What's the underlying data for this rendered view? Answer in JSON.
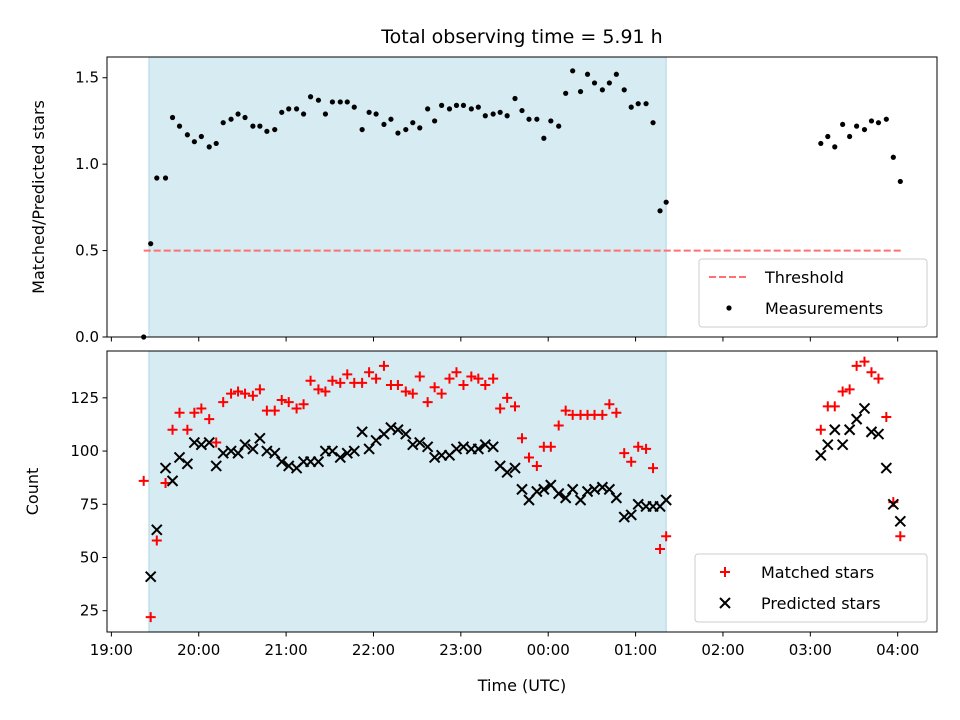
{
  "chart_data": [
    {
      "type": "scatter",
      "title": "Total observing time = 5.91 h",
      "xlabel": "",
      "ylabel": "Matched/Predicted stars",
      "ylim": [
        0,
        1.62
      ],
      "yticks": [
        0.0,
        0.5,
        1.0,
        1.5
      ],
      "ytick_labels": [
        "0.0",
        "0.5",
        "1.0",
        "1.5"
      ],
      "shaded_span": [
        19.43,
        1.35
      ],
      "threshold": {
        "name": "Threshold",
        "value": 0.5,
        "x_range": [
          19.37,
          4.05
        ],
        "color": "#ff7070"
      },
      "legend": {
        "position": "bottom-right",
        "entries": [
          "Threshold",
          "Measurements"
        ]
      },
      "series": [
        {
          "name": "Measurements",
          "color": "#000000",
          "marker": "dot",
          "points": [
            [
              19.37,
              0.0
            ],
            [
              19.45,
              0.54
            ],
            [
              19.52,
              0.92
            ],
            [
              19.62,
              0.92
            ],
            [
              19.7,
              1.27
            ],
            [
              19.78,
              1.22
            ],
            [
              19.87,
              1.17
            ],
            [
              19.95,
              1.13
            ],
            [
              20.03,
              1.16
            ],
            [
              20.12,
              1.1
            ],
            [
              20.2,
              1.12
            ],
            [
              20.28,
              1.24
            ],
            [
              20.37,
              1.26
            ],
            [
              20.45,
              1.29
            ],
            [
              20.53,
              1.27
            ],
            [
              20.62,
              1.22
            ],
            [
              20.7,
              1.22
            ],
            [
              20.78,
              1.19
            ],
            [
              20.87,
              1.2
            ],
            [
              20.95,
              1.3
            ],
            [
              21.03,
              1.32
            ],
            [
              21.12,
              1.32
            ],
            [
              21.2,
              1.29
            ],
            [
              21.28,
              1.39
            ],
            [
              21.37,
              1.37
            ],
            [
              21.45,
              1.29
            ],
            [
              21.53,
              1.36
            ],
            [
              21.62,
              1.36
            ],
            [
              21.7,
              1.36
            ],
            [
              21.78,
              1.33
            ],
            [
              21.87,
              1.2
            ],
            [
              21.95,
              1.3
            ],
            [
              22.03,
              1.29
            ],
            [
              22.12,
              1.23
            ],
            [
              22.2,
              1.26
            ],
            [
              22.28,
              1.18
            ],
            [
              22.37,
              1.2
            ],
            [
              22.45,
              1.24
            ],
            [
              22.53,
              1.21
            ],
            [
              22.62,
              1.32
            ],
            [
              22.7,
              1.25
            ],
            [
              22.78,
              1.34
            ],
            [
              22.87,
              1.32
            ],
            [
              22.95,
              1.34
            ],
            [
              23.03,
              1.34
            ],
            [
              23.12,
              1.32
            ],
            [
              23.2,
              1.33
            ],
            [
              23.28,
              1.28
            ],
            [
              23.37,
              1.29
            ],
            [
              23.45,
              1.3
            ],
            [
              23.53,
              1.28
            ],
            [
              23.62,
              1.38
            ],
            [
              23.7,
              1.31
            ],
            [
              23.78,
              1.26
            ],
            [
              23.87,
              1.26
            ],
            [
              23.95,
              1.15
            ],
            [
              24.03,
              1.25
            ],
            [
              24.12,
              1.22
            ],
            [
              24.2,
              1.41
            ],
            [
              24.28,
              1.54
            ],
            [
              24.37,
              1.42
            ],
            [
              24.45,
              1.52
            ],
            [
              24.53,
              1.47
            ],
            [
              24.62,
              1.43
            ],
            [
              24.7,
              1.47
            ],
            [
              24.78,
              1.52
            ],
            [
              24.87,
              1.43
            ],
            [
              24.95,
              1.33
            ],
            [
              25.03,
              1.35
            ],
            [
              25.12,
              1.35
            ],
            [
              25.2,
              1.24
            ],
            [
              25.28,
              0.73
            ],
            [
              25.35,
              0.78
            ],
            [
              27.12,
              1.12
            ],
            [
              27.2,
              1.16
            ],
            [
              27.28,
              1.1
            ],
            [
              27.37,
              1.23
            ],
            [
              27.45,
              1.16
            ],
            [
              27.53,
              1.22
            ],
            [
              27.62,
              1.2
            ],
            [
              27.7,
              1.25
            ],
            [
              27.78,
              1.24
            ],
            [
              27.87,
              1.26
            ],
            [
              27.95,
              1.04
            ],
            [
              28.03,
              0.9
            ]
          ]
        }
      ]
    },
    {
      "type": "scatter",
      "title": "",
      "xlabel": "Time (UTC)",
      "ylabel": "Count",
      "xlim": [
        18.95,
        28.45
      ],
      "ylim": [
        15,
        147
      ],
      "xticks": [
        19,
        20,
        21,
        22,
        23,
        24,
        25,
        26,
        27,
        28
      ],
      "xtick_labels": [
        "19:00",
        "20:00",
        "21:00",
        "22:00",
        "23:00",
        "00:00",
        "01:00",
        "02:00",
        "03:00",
        "04:00"
      ],
      "yticks": [
        25,
        50,
        75,
        100,
        125
      ],
      "ytick_labels": [
        "25",
        "50",
        "75",
        "100",
        "125"
      ],
      "shaded_span": [
        19.43,
        1.35
      ],
      "legend": {
        "position": "bottom-right",
        "entries": [
          "Matched stars",
          "Predicted stars"
        ]
      },
      "series": [
        {
          "name": "Matched stars",
          "color": "#ff0000",
          "marker": "plus",
          "points": [
            [
              19.37,
              86
            ],
            [
              19.45,
              22
            ],
            [
              19.52,
              58
            ],
            [
              19.62,
              85
            ],
            [
              19.7,
              110
            ],
            [
              19.78,
              118
            ],
            [
              19.87,
              110
            ],
            [
              19.95,
              118
            ],
            [
              20.03,
              120
            ],
            [
              20.12,
              115
            ],
            [
              20.2,
              104
            ],
            [
              20.28,
              123
            ],
            [
              20.37,
              127
            ],
            [
              20.45,
              128
            ],
            [
              20.53,
              127
            ],
            [
              20.62,
              126
            ],
            [
              20.7,
              129
            ],
            [
              20.78,
              119
            ],
            [
              20.87,
              119
            ],
            [
              20.95,
              124
            ],
            [
              21.03,
              123
            ],
            [
              21.12,
              120
            ],
            [
              21.2,
              122
            ],
            [
              21.28,
              133
            ],
            [
              21.37,
              129
            ],
            [
              21.45,
              128
            ],
            [
              21.53,
              133
            ],
            [
              21.62,
              132
            ],
            [
              21.7,
              136
            ],
            [
              21.78,
              132
            ],
            [
              21.87,
              132
            ],
            [
              21.95,
              137
            ],
            [
              22.03,
              134
            ],
            [
              22.12,
              140
            ],
            [
              22.2,
              131
            ],
            [
              22.28,
              131
            ],
            [
              22.37,
              128
            ],
            [
              22.45,
              127
            ],
            [
              22.53,
              135
            ],
            [
              22.62,
              123
            ],
            [
              22.7,
              130
            ],
            [
              22.78,
              127
            ],
            [
              22.87,
              134
            ],
            [
              22.95,
              137
            ],
            [
              23.03,
              131
            ],
            [
              23.12,
              135
            ],
            [
              23.2,
              134
            ],
            [
              23.28,
              131
            ],
            [
              23.37,
              134
            ],
            [
              23.45,
              120
            ],
            [
              23.53,
              125
            ],
            [
              23.62,
              121
            ],
            [
              23.7,
              106
            ],
            [
              23.78,
              97
            ],
            [
              23.87,
              93
            ],
            [
              23.95,
              102
            ],
            [
              24.03,
              102
            ],
            [
              24.12,
              112
            ],
            [
              24.2,
              119
            ],
            [
              24.28,
              117
            ],
            [
              24.37,
              117
            ],
            [
              24.45,
              117
            ],
            [
              24.53,
              117
            ],
            [
              24.62,
              117
            ],
            [
              24.7,
              122
            ],
            [
              24.78,
              118
            ],
            [
              24.87,
              99
            ],
            [
              24.95,
              95
            ],
            [
              25.03,
              102
            ],
            [
              25.12,
              101
            ],
            [
              25.2,
              92
            ],
            [
              25.28,
              54
            ],
            [
              25.35,
              60
            ],
            [
              27.12,
              110
            ],
            [
              27.2,
              121
            ],
            [
              27.28,
              121
            ],
            [
              27.37,
              128
            ],
            [
              27.45,
              129
            ],
            [
              27.53,
              140
            ],
            [
              27.62,
              142
            ],
            [
              27.7,
              137
            ],
            [
              27.78,
              134
            ],
            [
              27.87,
              116
            ],
            [
              27.95,
              76
            ],
            [
              28.03,
              60
            ]
          ]
        },
        {
          "name": "Predicted stars",
          "color": "#000000",
          "marker": "x",
          "points": [
            [
              19.45,
              41
            ],
            [
              19.52,
              63
            ],
            [
              19.62,
              92
            ],
            [
              19.7,
              86
            ],
            [
              19.78,
              97
            ],
            [
              19.87,
              94
            ],
            [
              19.95,
              104
            ],
            [
              20.03,
              103
            ],
            [
              20.12,
              104
            ],
            [
              20.2,
              93
            ],
            [
              20.28,
              99
            ],
            [
              20.37,
              100
            ],
            [
              20.45,
              99
            ],
            [
              20.53,
              103
            ],
            [
              20.62,
              101
            ],
            [
              20.7,
              106
            ],
            [
              20.78,
              100
            ],
            [
              20.87,
              99
            ],
            [
              20.95,
              95
            ],
            [
              21.03,
              93
            ],
            [
              21.12,
              92
            ],
            [
              21.2,
              95
            ],
            [
              21.28,
              95
            ],
            [
              21.37,
              95
            ],
            [
              21.45,
              100
            ],
            [
              21.53,
              100
            ],
            [
              21.62,
              97
            ],
            [
              21.7,
              99
            ],
            [
              21.78,
              100
            ],
            [
              21.87,
              109
            ],
            [
              21.95,
              101
            ],
            [
              22.03,
              105
            ],
            [
              22.12,
              108
            ],
            [
              22.2,
              111
            ],
            [
              22.28,
              110
            ],
            [
              22.37,
              108
            ],
            [
              22.45,
              103
            ],
            [
              22.53,
              104
            ],
            [
              22.62,
              102
            ],
            [
              22.7,
              97
            ],
            [
              22.78,
              98
            ],
            [
              22.87,
              98
            ],
            [
              22.95,
              101
            ],
            [
              23.03,
              102
            ],
            [
              23.12,
              101
            ],
            [
              23.2,
              101
            ],
            [
              23.28,
              103
            ],
            [
              23.37,
              102
            ],
            [
              23.45,
              93
            ],
            [
              23.53,
              90
            ],
            [
              23.62,
              92
            ],
            [
              23.7,
              82
            ],
            [
              23.78,
              77
            ],
            [
              23.87,
              81
            ],
            [
              23.95,
              82
            ],
            [
              24.03,
              84
            ],
            [
              24.12,
              80
            ],
            [
              24.2,
              78
            ],
            [
              24.28,
              82
            ],
            [
              24.37,
              77
            ],
            [
              24.45,
              81
            ],
            [
              24.53,
              82
            ],
            [
              24.62,
              83
            ],
            [
              24.7,
              82
            ],
            [
              24.78,
              78
            ],
            [
              24.87,
              69
            ],
            [
              24.95,
              70
            ],
            [
              25.03,
              75
            ],
            [
              25.12,
              74
            ],
            [
              25.2,
              74
            ],
            [
              25.28,
              74
            ],
            [
              25.35,
              77
            ],
            [
              27.12,
              98
            ],
            [
              27.2,
              103
            ],
            [
              27.28,
              110
            ],
            [
              27.37,
              103
            ],
            [
              27.45,
              110
            ],
            [
              27.53,
              115
            ],
            [
              27.62,
              120
            ],
            [
              27.7,
              109
            ],
            [
              27.78,
              108
            ],
            [
              27.87,
              92
            ],
            [
              27.95,
              75
            ],
            [
              28.03,
              67
            ]
          ]
        }
      ]
    }
  ]
}
